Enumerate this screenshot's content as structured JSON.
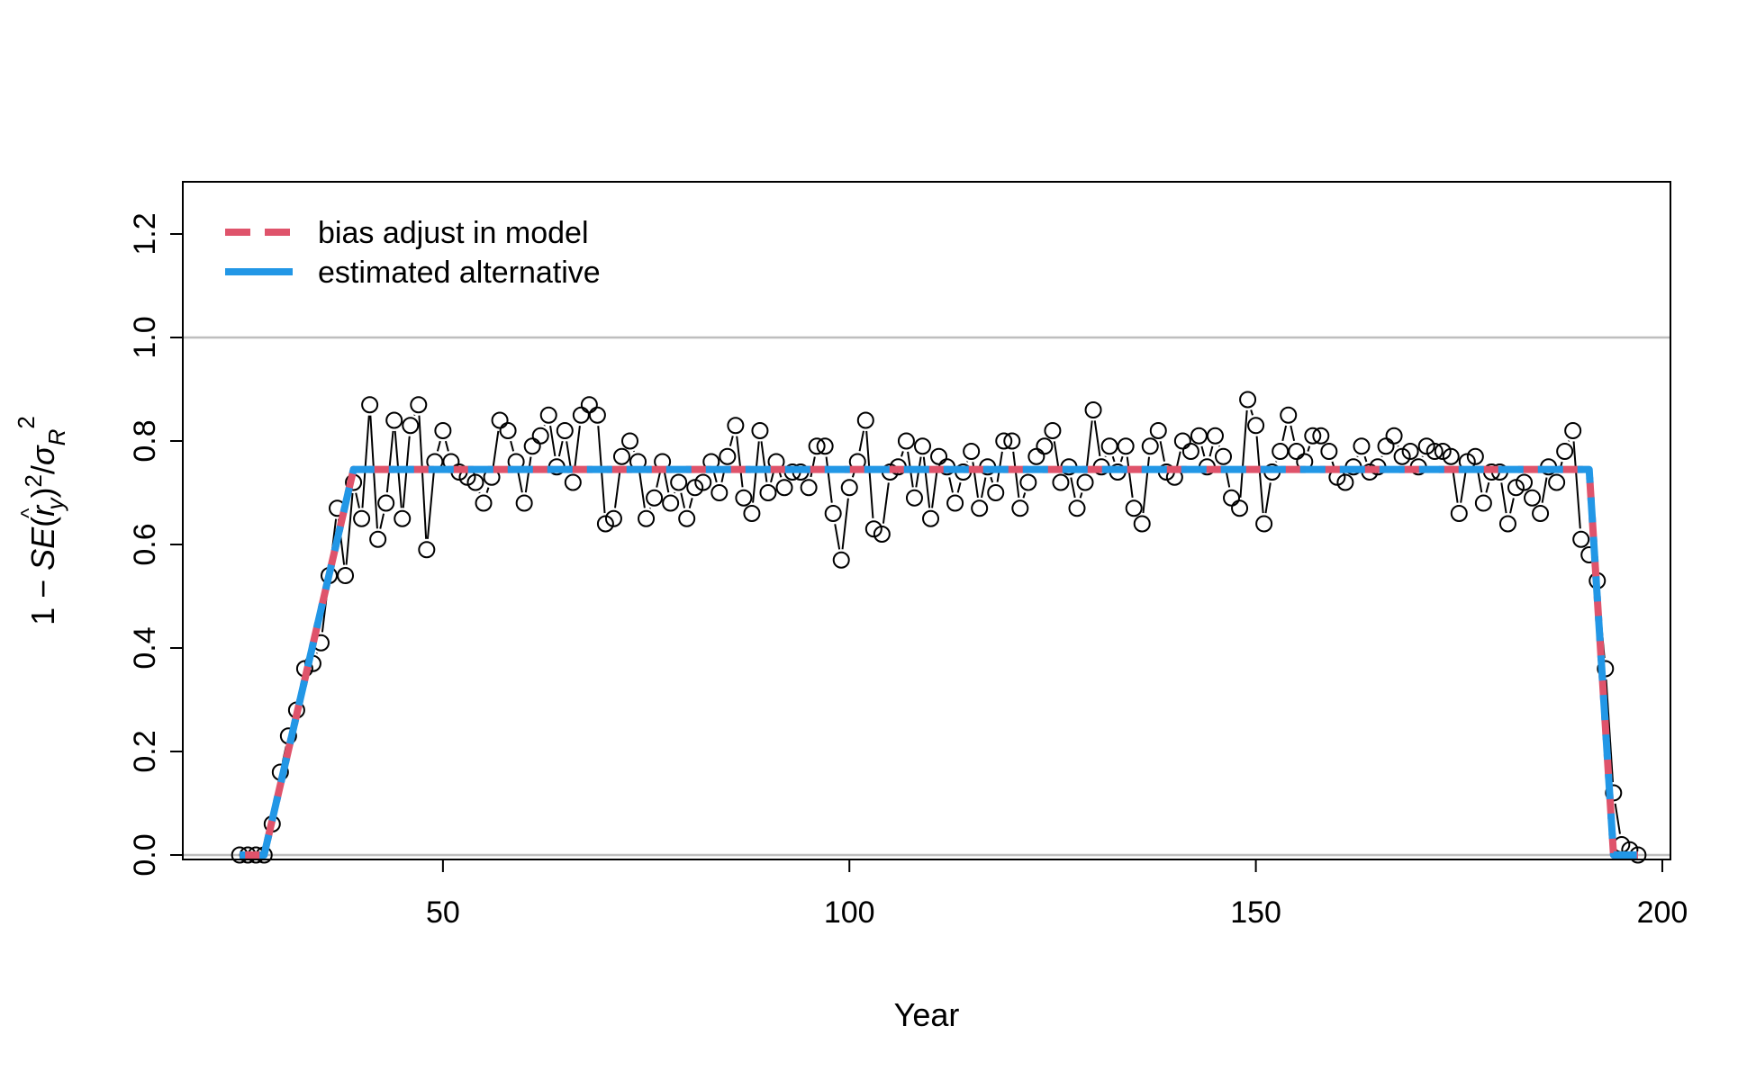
{
  "chart_data": {
    "type": "scatter",
    "xlabel": "Year",
    "ylabel": {
      "prefix": "1 − ",
      "se": "SE",
      "r": "r",
      "hat": "^",
      "y": "y",
      "sq": "2",
      "slash": "/",
      "sigma": "σ",
      "R": "R",
      "sq2": "2"
    },
    "xlim": [
      18,
      201
    ],
    "ylim": [
      0,
      1.3
    ],
    "x_ticks": [
      50,
      100,
      150,
      200
    ],
    "y_ticks": [
      0.0,
      0.2,
      0.4,
      0.6,
      0.8,
      1.0,
      1.2
    ],
    "x_tick_labels": [
      "50",
      "100",
      "150",
      "200"
    ],
    "y_tick_labels": [
      "0.0",
      "0.2",
      "0.4",
      "0.6",
      "0.8",
      "1.0",
      "1.2"
    ],
    "reference_lines": [
      0,
      1.0
    ],
    "legend_position": "top-left",
    "colors": {
      "bias": "#DF536B",
      "alternative": "#2297E6",
      "points": "#000000",
      "reference": "#BEBEBE"
    },
    "series": [
      {
        "name": "bias adjust in model",
        "style": "dashed",
        "x": [
          25,
          28,
          39,
          191,
          194,
          197
        ],
        "y": [
          0,
          0,
          0.745,
          0.745,
          0,
          0
        ]
      },
      {
        "name": "estimated alternative",
        "style": "dashed",
        "x": [
          25,
          28,
          39,
          191,
          194,
          197
        ],
        "y": [
          0,
          0,
          0.745,
          0.745,
          0,
          0
        ]
      }
    ],
    "points": {
      "x": [
        25,
        26,
        27,
        28,
        29,
        30,
        31,
        32,
        33,
        34,
        35,
        36,
        37,
        38,
        39,
        40,
        41,
        42,
        43,
        44,
        45,
        46,
        47,
        48,
        49,
        50,
        51,
        52,
        53,
        54,
        55,
        56,
        57,
        58,
        59,
        60,
        61,
        62,
        63,
        64,
        65,
        66,
        67,
        68,
        69,
        70,
        71,
        72,
        73,
        74,
        75,
        76,
        77,
        78,
        79,
        80,
        81,
        82,
        83,
        84,
        85,
        86,
        87,
        88,
        89,
        90,
        91,
        92,
        93,
        94,
        95,
        96,
        97,
        98,
        99,
        100,
        101,
        102,
        103,
        104,
        105,
        106,
        107,
        108,
        109,
        110,
        111,
        112,
        113,
        114,
        115,
        116,
        117,
        118,
        119,
        120,
        121,
        122,
        123,
        124,
        125,
        126,
        127,
        128,
        129,
        130,
        131,
        132,
        133,
        134,
        135,
        136,
        137,
        138,
        139,
        140,
        141,
        142,
        143,
        144,
        145,
        146,
        147,
        148,
        149,
        150,
        151,
        152,
        153,
        154,
        155,
        156,
        157,
        158,
        159,
        160,
        161,
        162,
        163,
        164,
        165,
        166,
        167,
        168,
        169,
        170,
        171,
        172,
        173,
        174,
        175,
        176,
        177,
        178,
        179,
        180,
        181,
        182,
        183,
        184,
        185,
        186,
        187,
        188,
        189,
        190,
        191,
        192,
        193,
        194,
        195,
        196,
        197
      ],
      "y": [
        0.0,
        0.0,
        0.0,
        0.0,
        0.06,
        0.16,
        0.23,
        0.28,
        0.36,
        0.37,
        0.41,
        0.54,
        0.67,
        0.54,
        0.72,
        0.65,
        0.87,
        0.61,
        0.68,
        0.84,
        0.65,
        0.83,
        0.87,
        0.59,
        0.76,
        0.82,
        0.76,
        0.74,
        0.73,
        0.72,
        0.68,
        0.73,
        0.84,
        0.82,
        0.76,
        0.68,
        0.79,
        0.81,
        0.85,
        0.75,
        0.82,
        0.72,
        0.85,
        0.87,
        0.85,
        0.64,
        0.65,
        0.77,
        0.8,
        0.76,
        0.65,
        0.69,
        0.76,
        0.68,
        0.72,
        0.65,
        0.71,
        0.72,
        0.76,
        0.7,
        0.77,
        0.83,
        0.69,
        0.66,
        0.82,
        0.7,
        0.76,
        0.71,
        0.74,
        0.74,
        0.71,
        0.79,
        0.79,
        0.66,
        0.57,
        0.71,
        0.76,
        0.84,
        0.63,
        0.62,
        0.74,
        0.75,
        0.8,
        0.69,
        0.79,
        0.65,
        0.77,
        0.75,
        0.68,
        0.74,
        0.78,
        0.67,
        0.75,
        0.7,
        0.8,
        0.8,
        0.67,
        0.72,
        0.77,
        0.79,
        0.82,
        0.72,
        0.75,
        0.67,
        0.72,
        0.86,
        0.75,
        0.79,
        0.74,
        0.79,
        0.67,
        0.64,
        0.79,
        0.82,
        0.74,
        0.73,
        0.8,
        0.78,
        0.81,
        0.75,
        0.81,
        0.77,
        0.69,
        0.67,
        0.88,
        0.83,
        0.64,
        0.74,
        0.78,
        0.85,
        0.78,
        0.76,
        0.81,
        0.81,
        0.78,
        0.73,
        0.72,
        0.75,
        0.79,
        0.74,
        0.75,
        0.79,
        0.81,
        0.77,
        0.78,
        0.75,
        0.79,
        0.78,
        0.78,
        0.77,
        0.66,
        0.76,
        0.77,
        0.68,
        0.74,
        0.74,
        0.64,
        0.71,
        0.72,
        0.69,
        0.66,
        0.75,
        0.72,
        0.78,
        0.82,
        0.61,
        0.58,
        0.53,
        0.36,
        0.12,
        0.02,
        0.01,
        0.0
      ]
    }
  }
}
